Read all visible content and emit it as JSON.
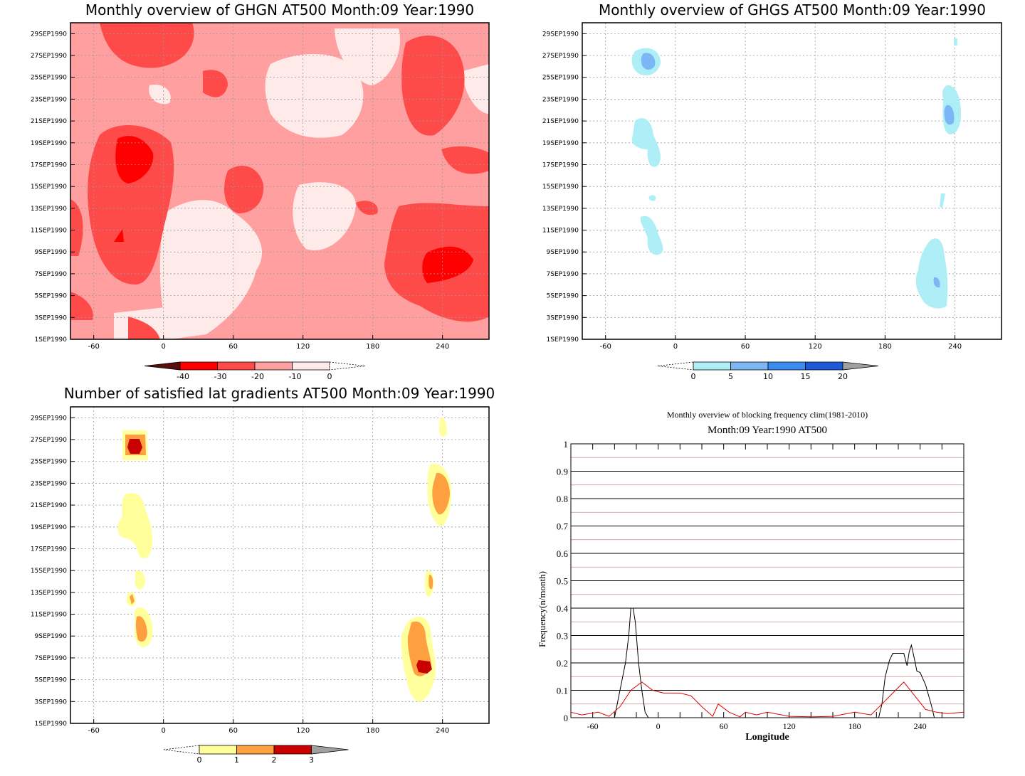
{
  "panels": [
    {
      "id": "ghgn",
      "title": "Monthly overview of GHGN AT500 Month:09 Year:1990",
      "colorbar": {
        "labels": [
          "-40",
          "-30",
          "-20",
          "-10",
          "0"
        ],
        "colors": [
          "#5a0f0f",
          "#ff0000",
          "#ff4a4a",
          "#ff9f9f",
          "#ffeaea"
        ]
      }
    },
    {
      "id": "ghgs",
      "title": "Monthly overview of GHGS AT500 Month:09 Year:1990",
      "colorbar": {
        "labels": [
          "0",
          "5",
          "10",
          "15",
          "20"
        ],
        "colors": [
          "#aeeef6",
          "#7cb6f5",
          "#3a8cf0",
          "#1c5ad8",
          "#a0a0a0"
        ]
      }
    },
    {
      "id": "latgrad",
      "title": "Number of satisfied lat gradients AT500 Month:09 Year:1990",
      "colorbar": {
        "labels": [
          "0",
          "1",
          "2",
          "3"
        ],
        "colors": [
          "#ffff9c",
          "#ffa040",
          "#c80000",
          "#a0a0a0"
        ]
      }
    }
  ],
  "y_dates": [
    "1SEP1990",
    "3SEP1990",
    "5SEP1990",
    "7SEP1990",
    "9SEP1990",
    "11SEP1990",
    "13SEP1990",
    "15SEP1990",
    "17SEP1990",
    "19SEP1990",
    "21SEP1990",
    "23SEP1990",
    "25SEP1990",
    "27SEP1990",
    "29SEP1990"
  ],
  "x_ticks": [
    "-60",
    "0",
    "60",
    "120",
    "180",
    "240"
  ],
  "line_chart": {
    "title": "Monthly overview of blocking frequency clim(1981-2010)",
    "subtitle": "Month:09 Year:1990  AT500",
    "xlabel": "Longitude",
    "ylabel": "Frequency(n/month)",
    "x_ticks": [
      "-60",
      "0",
      "60",
      "120",
      "180",
      "240"
    ],
    "y_ticks": [
      "0",
      "0.1",
      "0.2",
      "0.3",
      "0.4",
      "0.5",
      "0.6",
      "0.7",
      "0.8",
      "0.9",
      "1"
    ],
    "colors": {
      "observed": "#000000",
      "climatology": "#e00000"
    }
  },
  "chart_data": [
    {
      "type": "heatmap",
      "title": "Monthly overview of GHGN AT500 Month:09 Year:1990",
      "x_range": [
        -80,
        280
      ],
      "y_range": [
        "1SEP1990",
        "30SEP1990"
      ],
      "legend": [
        "-40",
        "-30",
        "-20",
        "-10",
        "0"
      ]
    },
    {
      "type": "heatmap",
      "title": "Monthly overview of GHGS AT500 Month:09 Year:1990",
      "x_range": [
        -80,
        280
      ],
      "y_range": [
        "1SEP1990",
        "30SEP1990"
      ],
      "legend": [
        "0",
        "5",
        "10",
        "15",
        "20"
      ]
    },
    {
      "type": "heatmap",
      "title": "Number of satisfied lat gradients AT500 Month:09 Year:1990",
      "x_range": [
        -80,
        280
      ],
      "y_range": [
        "1SEP1990",
        "30SEP1990"
      ],
      "legend": [
        "0",
        "1",
        "2",
        "3"
      ]
    },
    {
      "type": "line",
      "title": "Monthly overview of blocking frequency clim(1981-2010)",
      "subtitle": "Month:09 Year:1990  AT500",
      "xlabel": "Longitude",
      "ylabel": "Frequency(n/month)",
      "xlim": [
        -80,
        280
      ],
      "ylim": [
        0,
        1
      ],
      "grid": true,
      "series": [
        {
          "x": [
            -80,
            -40,
            -35,
            -30,
            -27,
            -25,
            -23,
            -21,
            -18,
            -15,
            -12,
            -9,
            280
          ],
          "y": [
            0,
            0,
            0.1,
            0.2,
            0.3,
            0.4,
            0.4,
            0.35,
            0.2,
            0.1,
            0.02,
            0,
            0
          ]
        },
        {
          "x": [
            -80,
            202,
            205,
            208,
            212,
            215,
            218,
            220,
            225,
            228,
            230,
            232,
            235,
            237,
            240,
            245,
            250,
            253,
            280
          ],
          "y": [
            0,
            0,
            0.05,
            0.15,
            0.21,
            0.235,
            0.235,
            0.235,
            0.235,
            0.19,
            0.24,
            0.265,
            0.21,
            0.17,
            0.165,
            0.12,
            0.05,
            0,
            0
          ]
        },
        {
          "x": [
            -80,
            -70,
            -55,
            -45,
            -35,
            -25,
            -15,
            -5,
            5,
            20,
            30,
            40,
            50,
            55,
            65,
            75,
            80,
            90,
            100,
            120,
            140,
            160,
            180,
            195,
            205,
            215,
            225,
            235,
            245,
            255,
            265,
            280
          ],
          "y": [
            0.02,
            0.01,
            0.02,
            0.005,
            0.04,
            0.1,
            0.13,
            0.1,
            0.09,
            0.09,
            0.08,
            0.04,
            0.005,
            0.05,
            0.02,
            0.003,
            0.02,
            0.01,
            0.02,
            0.005,
            0.003,
            0.005,
            0.02,
            0.01,
            0.05,
            0.09,
            0.13,
            0.08,
            0.03,
            0.02,
            0.015,
            0.02
          ]
        }
      ]
    }
  ]
}
